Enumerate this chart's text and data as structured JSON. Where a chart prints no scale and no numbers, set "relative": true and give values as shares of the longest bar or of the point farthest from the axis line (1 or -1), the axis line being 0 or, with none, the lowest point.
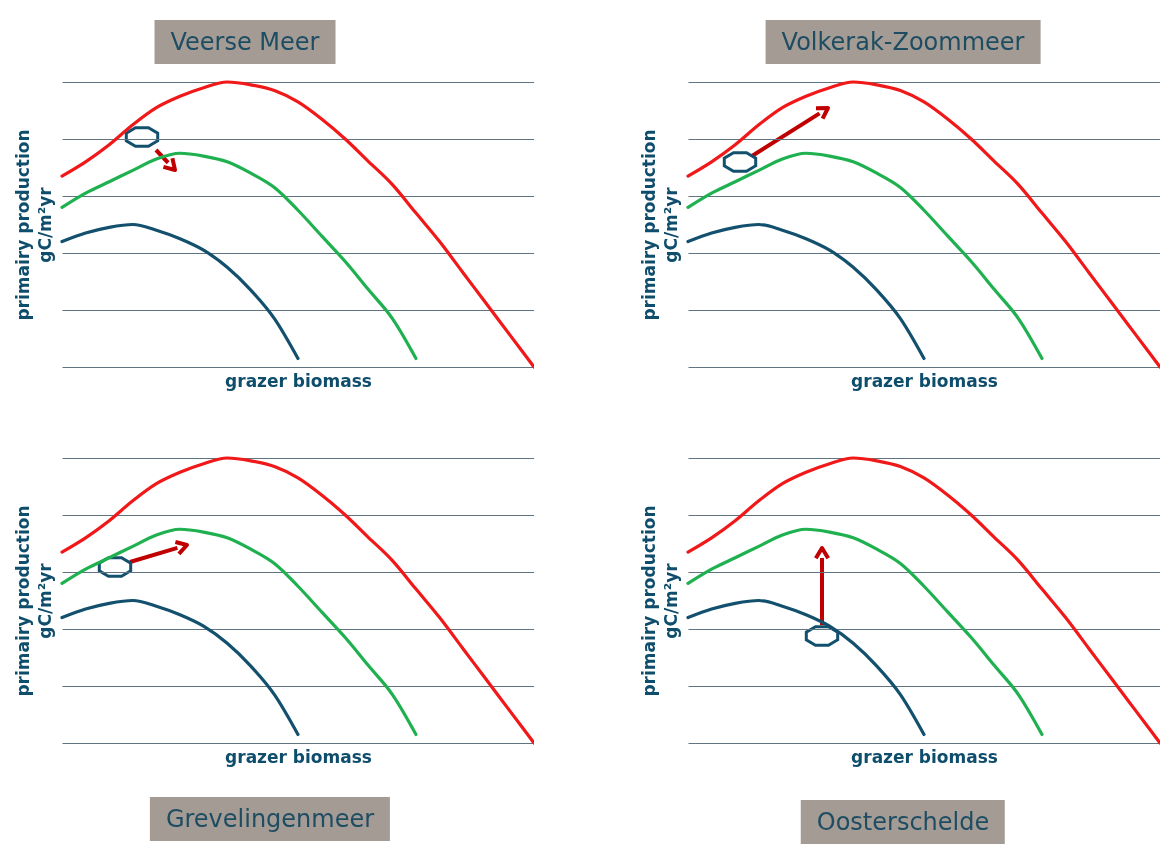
{
  "chart_data": [
    {
      "type": "line",
      "title": "Veerse Meer",
      "xlabel": "grazer biomass",
      "ylabel": "primairy production\ngC/m²yr",
      "relative": true,
      "grid": "y",
      "categories": [
        null,
        null,
        null,
        null,
        null,
        null,
        null,
        null,
        null,
        null,
        null,
        null,
        null,
        null,
        null,
        null,
        null,
        null,
        null,
        null,
        null
      ],
      "series": [
        {
          "color": "#f01818",
          "values": [
            0.67,
            0.72,
            0.78,
            0.85,
            0.91,
            0.95,
            0.98,
            1,
            0.99,
            0.97,
            0.93,
            0.87,
            0.8,
            0.72,
            0.64,
            0.54,
            0.44,
            0.33,
            0.22,
            0.11,
            0
          ]
        },
        {
          "color": "#1fb050",
          "values": [
            0.56,
            0.61,
            0.65,
            0.69,
            0.73,
            0.75,
            0.74,
            0.72,
            0.68,
            0.63,
            0.55,
            0.46,
            0.37,
            0.27,
            0.17,
            0.03,
            null,
            null,
            null,
            null,
            null
          ]
        },
        {
          "color": "#13506e",
          "values": [
            0.44,
            0.47,
            0.49,
            0.5,
            0.48,
            0.45,
            0.41,
            0.35,
            0.27,
            0.17,
            0.03,
            null,
            null,
            null,
            null,
            null,
            null,
            null,
            null,
            null,
            null
          ]
        }
      ]
    },
    {
      "type": "line",
      "title": "Volkerak-Zoommeer",
      "xlabel": "grazer biomass",
      "ylabel": "primairy production\ngC/m²yr",
      "relative": true,
      "grid": "y",
      "categories": [
        null,
        null,
        null,
        null,
        null,
        null,
        null,
        null,
        null,
        null,
        null,
        null,
        null,
        null,
        null,
        null,
        null,
        null,
        null,
        null,
        null
      ],
      "series": [
        {
          "color": "#f01818",
          "values": [
            0.67,
            0.72,
            0.78,
            0.85,
            0.91,
            0.95,
            0.98,
            1,
            0.99,
            0.97,
            0.93,
            0.87,
            0.8,
            0.72,
            0.64,
            0.54,
            0.44,
            0.33,
            0.22,
            0.11,
            0
          ]
        },
        {
          "color": "#1fb050",
          "values": [
            0.56,
            0.61,
            0.65,
            0.69,
            0.73,
            0.75,
            0.74,
            0.72,
            0.68,
            0.63,
            0.55,
            0.46,
            0.37,
            0.27,
            0.17,
            0.03,
            null,
            null,
            null,
            null,
            null
          ]
        },
        {
          "color": "#13506e",
          "values": [
            0.44,
            0.47,
            0.49,
            0.5,
            0.48,
            0.45,
            0.41,
            0.35,
            0.27,
            0.17,
            0.03,
            null,
            null,
            null,
            null,
            null,
            null,
            null,
            null,
            null,
            null
          ]
        }
      ]
    },
    {
      "type": "line",
      "title": "Grevelingenmeer",
      "xlabel": "grazer biomass",
      "ylabel": "primairy production\ngC/m²yr",
      "relative": true,
      "grid": "y",
      "categories": [
        null,
        null,
        null,
        null,
        null,
        null,
        null,
        null,
        null,
        null,
        null,
        null,
        null,
        null,
        null,
        null,
        null,
        null,
        null,
        null,
        null
      ],
      "series": [
        {
          "color": "#f01818",
          "values": [
            0.67,
            0.72,
            0.78,
            0.85,
            0.91,
            0.95,
            0.98,
            1,
            0.99,
            0.97,
            0.93,
            0.87,
            0.8,
            0.72,
            0.64,
            0.54,
            0.44,
            0.33,
            0.22,
            0.11,
            0
          ]
        },
        {
          "color": "#1fb050",
          "values": [
            0.56,
            0.61,
            0.65,
            0.69,
            0.73,
            0.75,
            0.74,
            0.72,
            0.68,
            0.63,
            0.55,
            0.46,
            0.37,
            0.27,
            0.17,
            0.03,
            null,
            null,
            null,
            null,
            null
          ]
        },
        {
          "color": "#13506e",
          "values": [
            0.44,
            0.47,
            0.49,
            0.5,
            0.48,
            0.45,
            0.41,
            0.35,
            0.27,
            0.17,
            0.03,
            null,
            null,
            null,
            null,
            null,
            null,
            null,
            null,
            null,
            null
          ]
        }
      ]
    },
    {
      "type": "line",
      "title": "Oosterschelde",
      "xlabel": "grazer biomass",
      "ylabel": "primairy production\ngC/m²yr",
      "relative": true,
      "grid": "y",
      "categories": [
        null,
        null,
        null,
        null,
        null,
        null,
        null,
        null,
        null,
        null,
        null,
        null,
        null,
        null,
        null,
        null,
        null,
        null,
        null,
        null,
        null
      ],
      "series": [
        {
          "color": "#f01818",
          "values": [
            0.67,
            0.72,
            0.78,
            0.85,
            0.91,
            0.95,
            0.98,
            1,
            0.99,
            0.97,
            0.93,
            0.87,
            0.8,
            0.72,
            0.64,
            0.54,
            0.44,
            0.33,
            0.22,
            0.11,
            0
          ]
        },
        {
          "color": "#1fb050",
          "values": [
            0.56,
            0.61,
            0.65,
            0.69,
            0.73,
            0.75,
            0.74,
            0.72,
            0.68,
            0.63,
            0.55,
            0.46,
            0.37,
            0.27,
            0.17,
            0.03,
            null,
            null,
            null,
            null,
            null
          ]
        },
        {
          "color": "#13506e",
          "values": [
            0.44,
            0.47,
            0.49,
            0.5,
            0.48,
            0.45,
            0.41,
            0.35,
            0.27,
            0.17,
            0.03,
            null,
            null,
            null,
            null,
            null,
            null,
            null,
            null,
            null,
            null
          ]
        }
      ]
    }
  ]
}
